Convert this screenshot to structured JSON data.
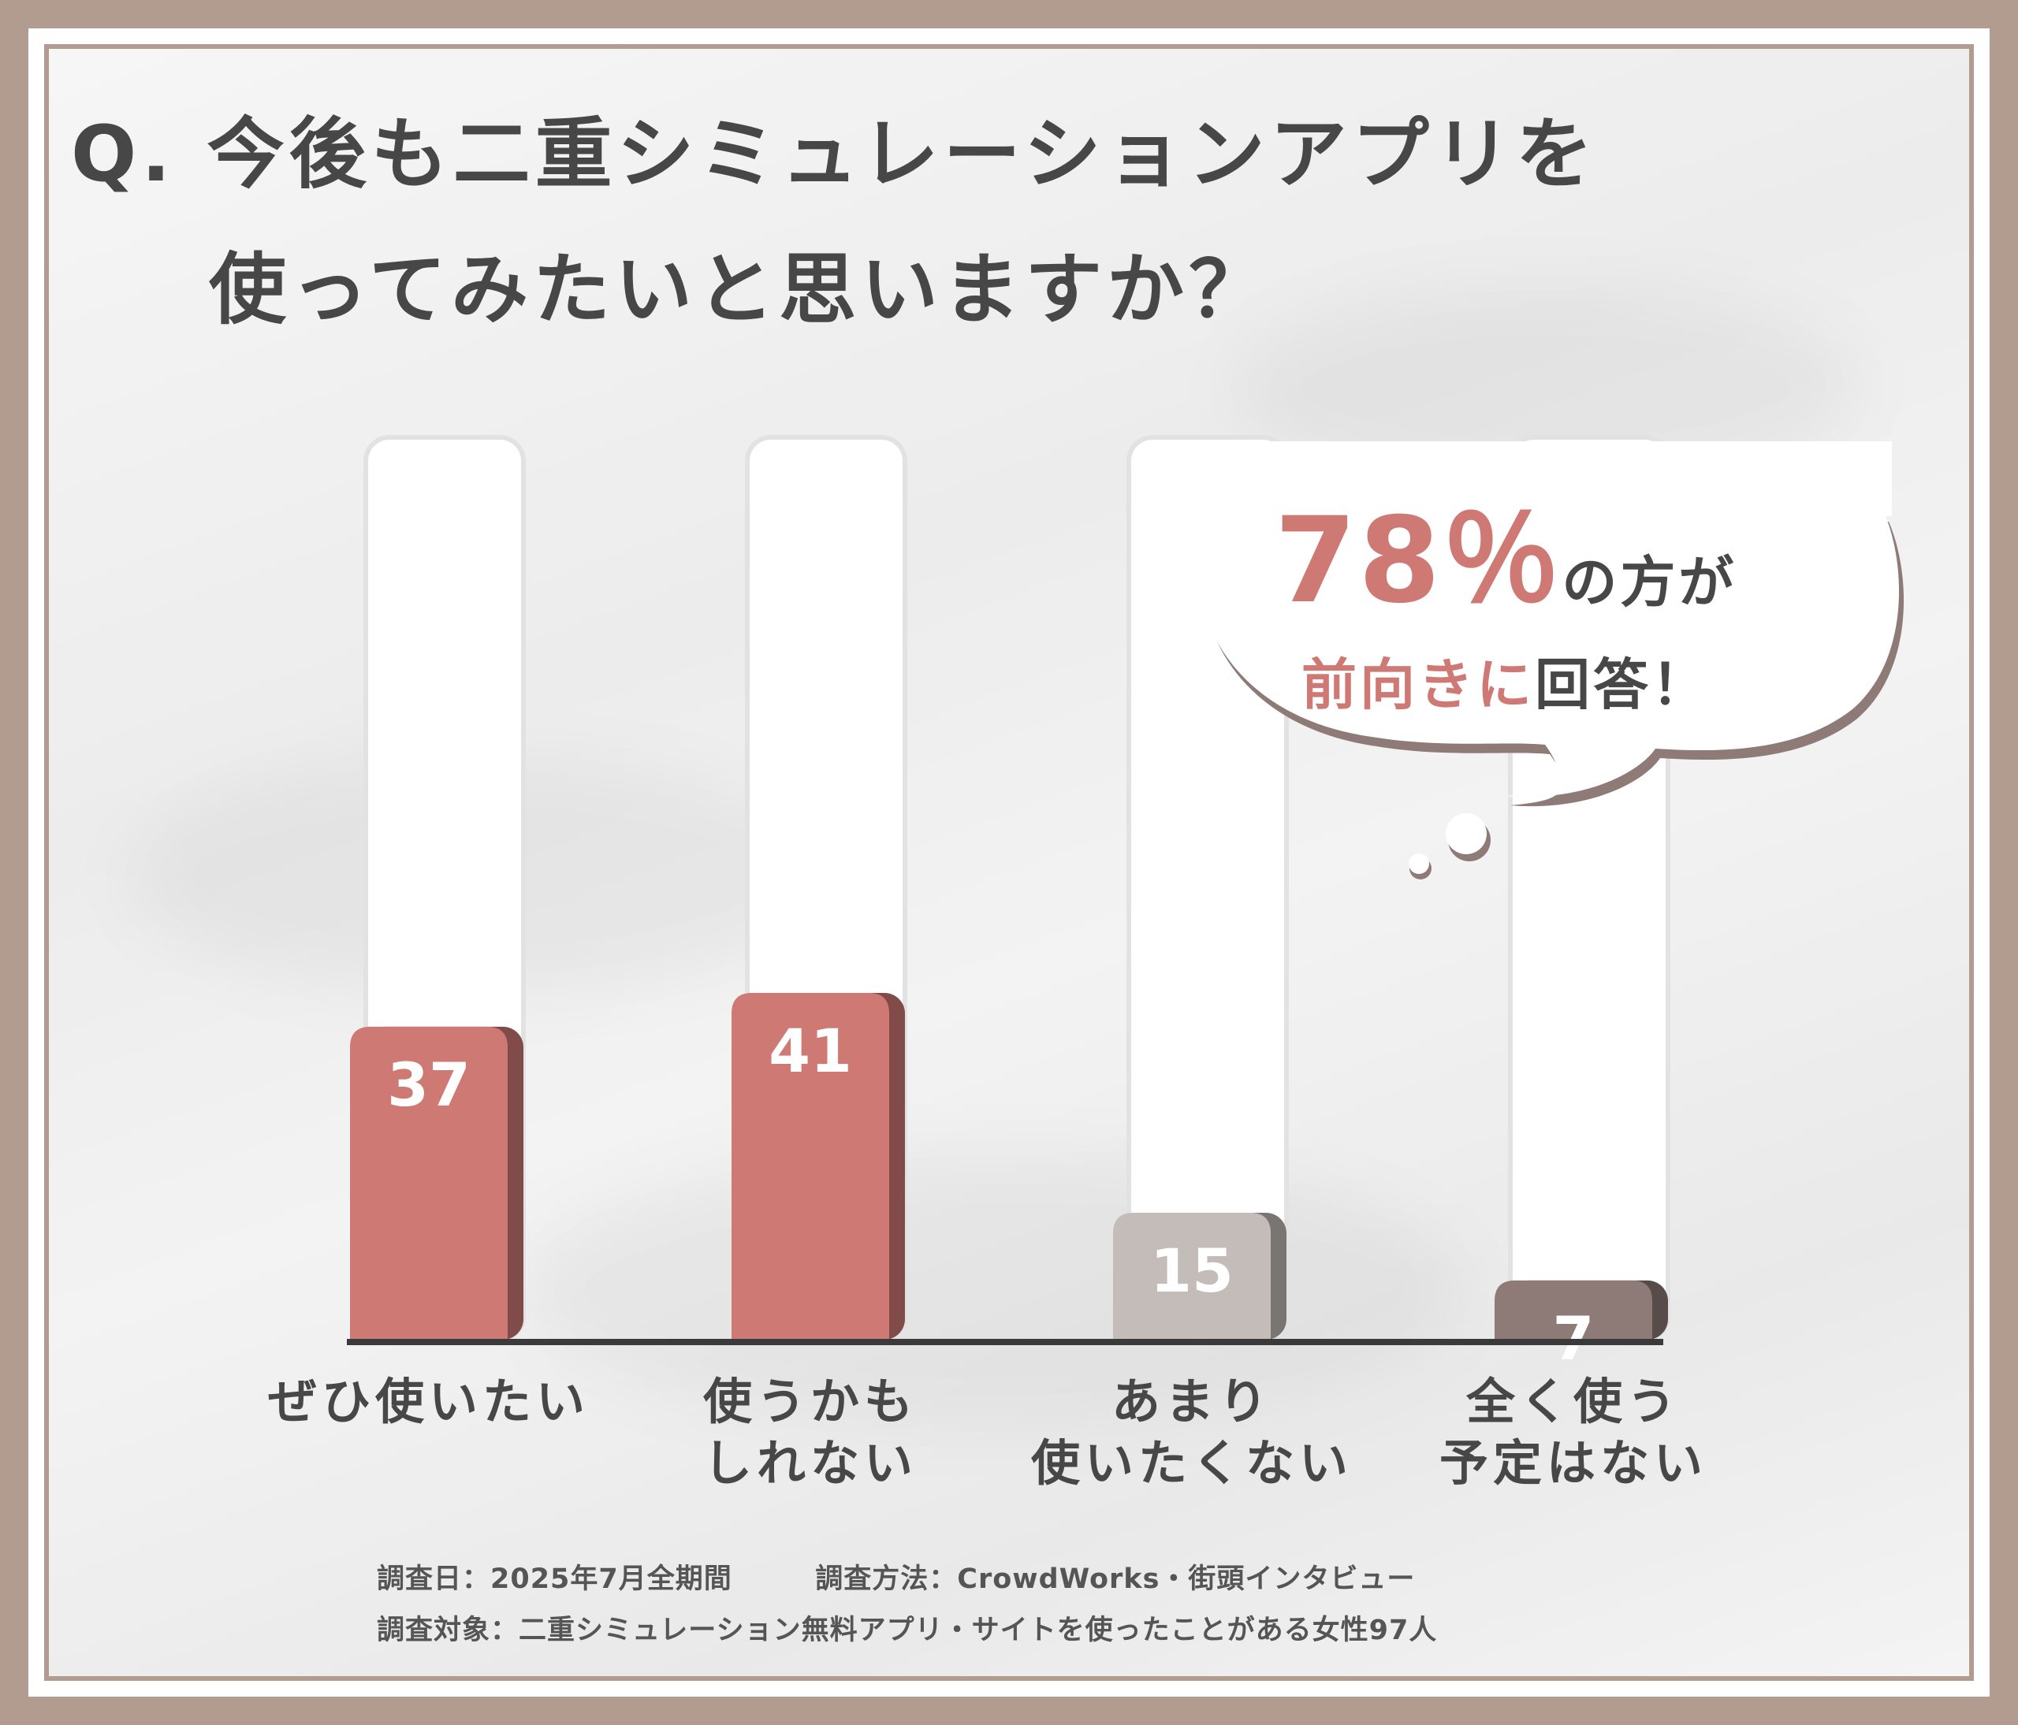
{
  "title": {
    "line1": "Q. 今後も二重シミュレーションアプリを",
    "line2": "使ってみたいと思いますか？"
  },
  "bubble": {
    "percent": "78％",
    "line1_rest": "の方が",
    "line2_accent": "前向きに",
    "line2_rest": "回答！"
  },
  "footer": {
    "line1_date": "調査日：2025年7月全期間",
    "line1_method": "調査方法：CrowdWorks・街頭インタビュー",
    "line2": "調査対象：二重シミュレーション無料アプリ・サイトを使ったことがある女性97人"
  },
  "colors": {
    "positive": "#cf7974",
    "neutral": "#c3bcb8",
    "negative": "#8e7a77",
    "frame": "#b29b8f",
    "text": "#474747"
  },
  "chart_data": {
    "type": "bar",
    "categories": [
      "ぜひ使いたい",
      "使うかも\nしれない",
      "あまり\n使いたくない",
      "全く使う\n予定はない"
    ],
    "values": [
      37,
      41,
      15,
      7
    ],
    "bar_colors": [
      "#cf7974",
      "#cf7974",
      "#c3bcb8",
      "#8e7a77"
    ],
    "ylim": [
      0,
      41
    ],
    "grid": false,
    "title": "Q. 今後も二重シミュレーションアプリを使ってみたいと思いますか？"
  }
}
